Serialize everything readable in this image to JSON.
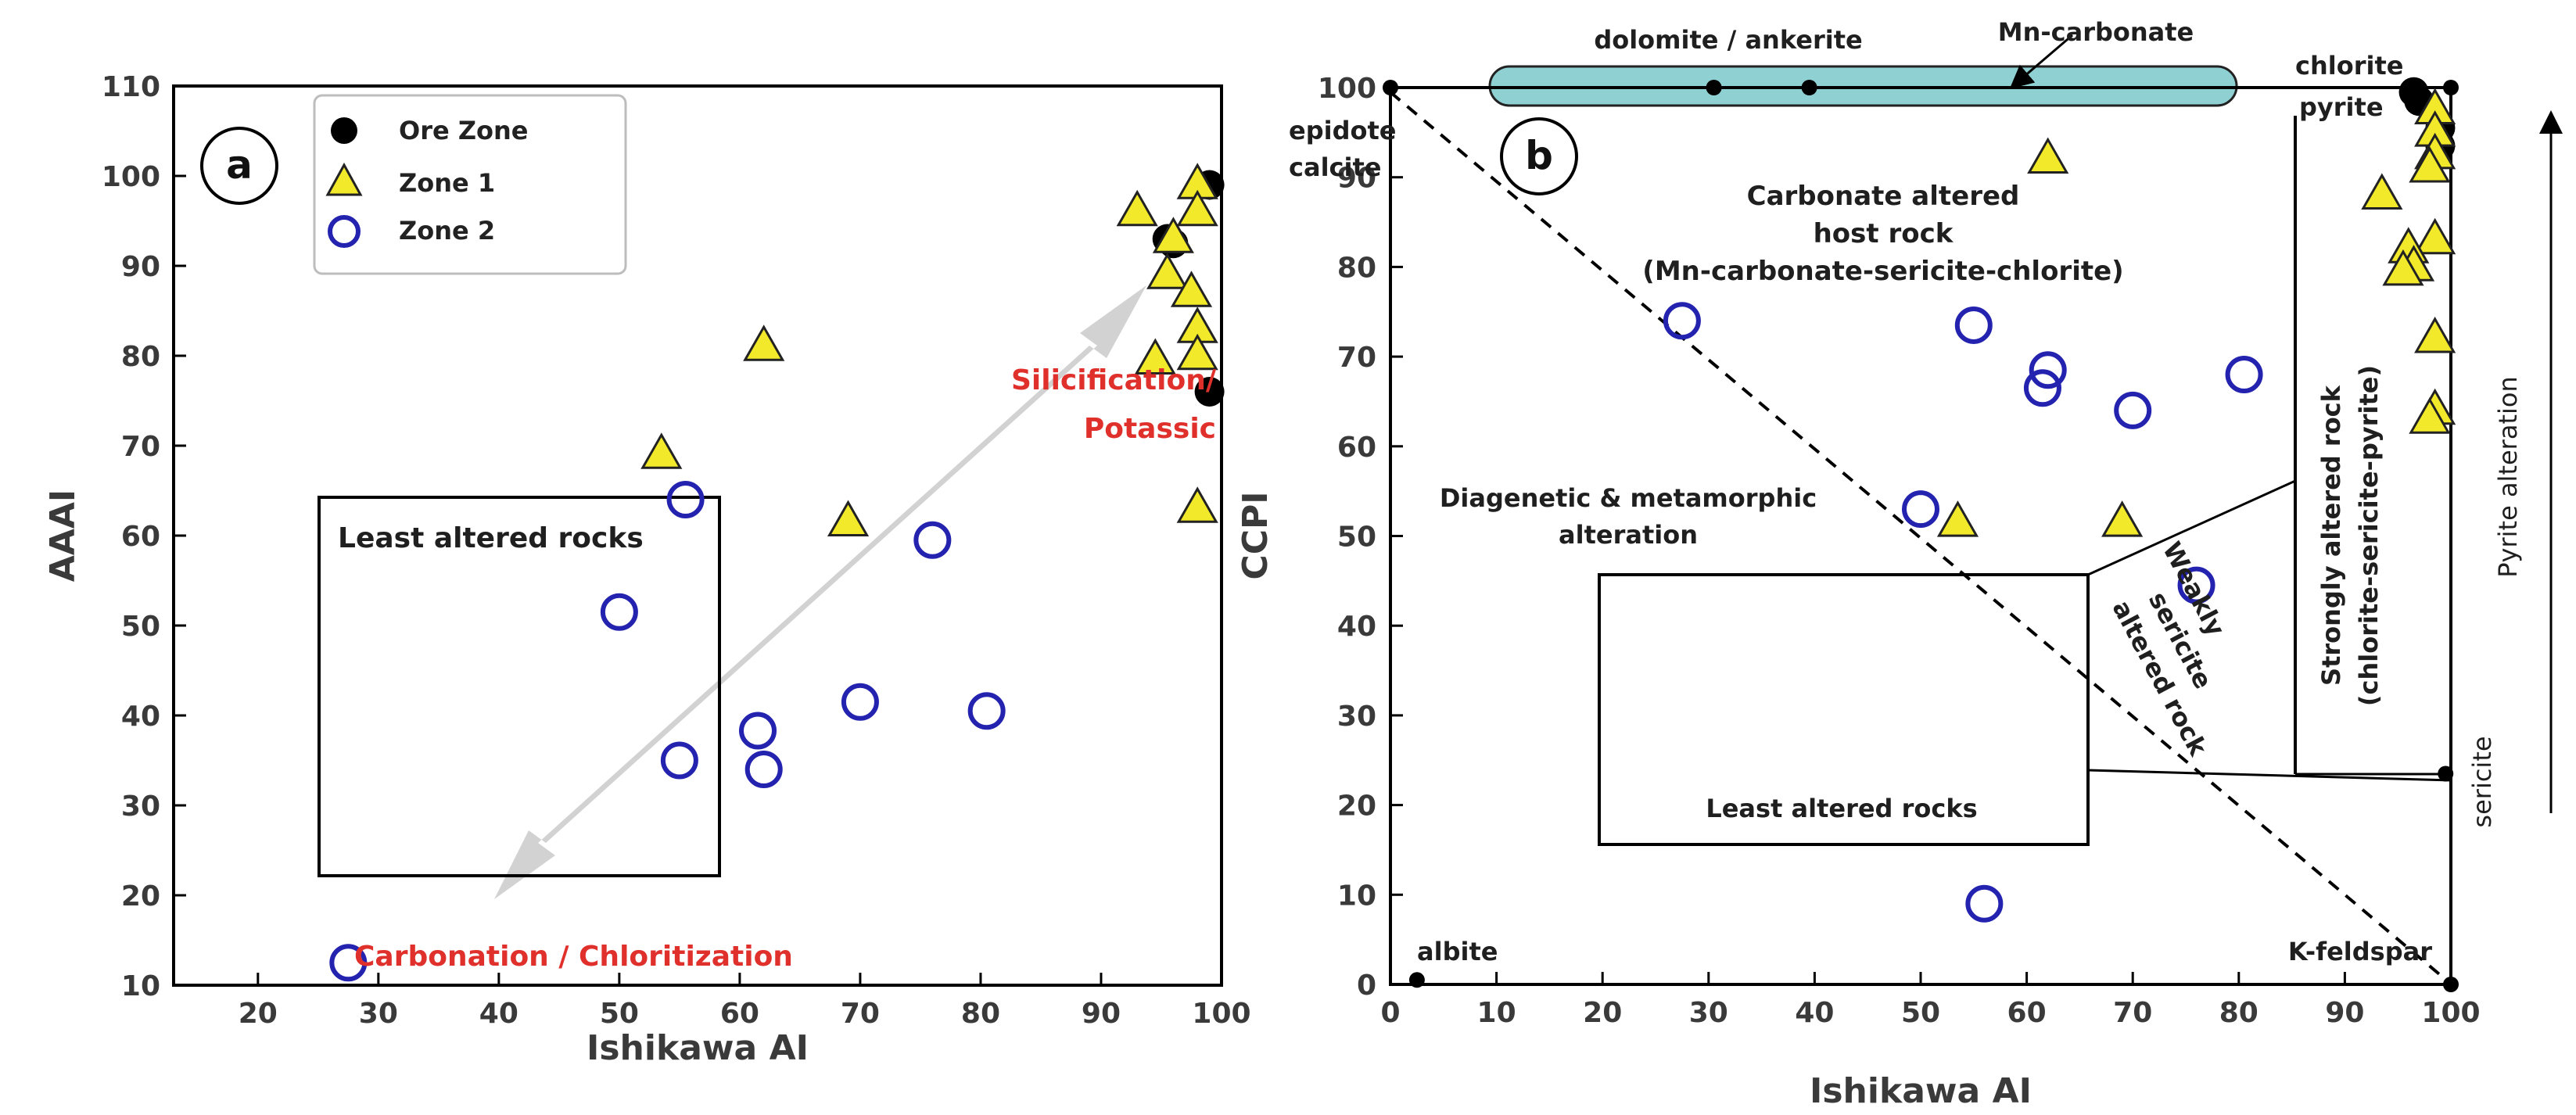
{
  "chart_data": [
    {
      "type": "scatter",
      "panel_label": "a",
      "xlabel": "Ishikawa AI",
      "ylabel": "AAAI",
      "xlim": [
        13,
        100
      ],
      "ylim": [
        10,
        110
      ],
      "xticks": [
        20,
        30,
        40,
        50,
        60,
        70,
        80,
        90,
        100
      ],
      "yticks": [
        10,
        20,
        30,
        40,
        50,
        60,
        70,
        80,
        90,
        100,
        110
      ],
      "legend": {
        "placement": "top-left",
        "entries": [
          "Ore Zone",
          "Zone 1",
          "Zone 2"
        ]
      },
      "series": [
        {
          "name": "Ore Zone",
          "marker": "filled-circle",
          "color": "#000000",
          "points": [
            [
              95.5,
              93
            ],
            [
              96,
              92.5
            ],
            [
              99,
              99
            ],
            [
              99,
              76
            ]
          ]
        },
        {
          "name": "Zone 1",
          "marker": "triangle",
          "color": "#f2e92b",
          "points": [
            [
              93,
              96
            ],
            [
              96,
              93
            ],
            [
              95.5,
              89
            ],
            [
              94.5,
              79.5
            ],
            [
              62,
              81
            ],
            [
              53.5,
              69
            ],
            [
              69,
              61.5
            ],
            [
              98,
              99
            ],
            [
              98,
              96
            ],
            [
              97.5,
              87
            ],
            [
              98,
              83
            ],
            [
              98,
              80
            ],
            [
              98,
              63
            ]
          ]
        },
        {
          "name": "Zone 2",
          "marker": "open-circle",
          "color": "#2323b0",
          "points": [
            [
              55.5,
              64
            ],
            [
              50,
              51.5
            ],
            [
              76,
              59.5
            ],
            [
              55,
              35
            ],
            [
              61.5,
              38.3
            ],
            [
              62,
              34
            ],
            [
              70,
              41.5
            ],
            [
              80.5,
              40.5
            ],
            [
              27.5,
              12.5
            ]
          ]
        }
      ],
      "annotations": {
        "box_label": "Least altered rocks",
        "arrow_top_label_1": "Silicification/",
        "arrow_top_label_2": "Potassic",
        "arrow_bottom_label": "Carbonation / Chloritization"
      }
    },
    {
      "type": "scatter",
      "panel_label": "b",
      "xlabel": "Ishikawa AI",
      "ylabel": "CCPI",
      "xlim": [
        0,
        100
      ],
      "ylim": [
        0,
        100
      ],
      "xticks": [
        0,
        10,
        20,
        30,
        40,
        50,
        60,
        70,
        80,
        90,
        100
      ],
      "yticks": [
        0,
        10,
        20,
        30,
        40,
        50,
        60,
        70,
        80,
        90,
        100
      ],
      "right_axis_label": "Pyrite alteration",
      "series": [
        {
          "name": "Ore Zone",
          "marker": "filled-circle",
          "color": "#000000",
          "points": [
            [
              96.5,
              99.5
            ],
            [
              97,
              98.5
            ],
            [
              99,
              95.5
            ],
            [
              99,
              93.5
            ]
          ]
        },
        {
          "name": "Zone 1",
          "marker": "triangle",
          "color": "#f2e92b",
          "points": [
            [
              62,
              92
            ],
            [
              98.5,
              97.5
            ],
            [
              98.5,
              95
            ],
            [
              98.5,
              92.5
            ],
            [
              98,
              91
            ],
            [
              93.5,
              88
            ],
            [
              98.5,
              83
            ],
            [
              96,
              82
            ],
            [
              96.5,
              80
            ],
            [
              95.5,
              79.5
            ],
            [
              98.5,
              72
            ],
            [
              98.5,
              64
            ],
            [
              98,
              63
            ],
            [
              53.5,
              51.5
            ],
            [
              69,
              51.5
            ]
          ]
        },
        {
          "name": "Zone 2",
          "marker": "open-circle",
          "color": "#2323b0",
          "points": [
            [
              27.5,
              74
            ],
            [
              55,
              73.5
            ],
            [
              62,
              68.5
            ],
            [
              61.5,
              66.5
            ],
            [
              70,
              64
            ],
            [
              80.5,
              68
            ],
            [
              50,
              53
            ],
            [
              76,
              44.5
            ],
            [
              56,
              9
            ]
          ]
        }
      ],
      "vertex_points": [
        [
          0,
          100
        ],
        [
          30.5,
          100
        ],
        [
          39.5,
          100
        ],
        [
          100,
          100
        ],
        [
          2.5,
          0.5
        ],
        [
          100,
          0
        ],
        [
          99.5,
          23.5
        ]
      ],
      "annotations": {
        "top_bar_label": "dolomite / ankerite",
        "mn_label": "Mn-carbonate",
        "chlorite": "chlorite",
        "pyrite": "pyrite",
        "epidote": "epidote",
        "calcite": "calcite",
        "carb_1": "Carbonate altered",
        "carb_2": "host rock",
        "carb_3": "(Mn-carbonate-sericite-chlorite)",
        "diag_1": "Diagenetic & metamorphic",
        "diag_2": "alteration",
        "least": "Least altered rocks",
        "weak_1": "Weakly",
        "weak_2": "sericite",
        "weak_3": "altered rock",
        "strong_1": "Strongly altered rock",
        "strong_2": "(chlorite-sericite-pyrite)",
        "sericite": "sericite",
        "albite": "albite",
        "kfeldspar": "K-feldspar"
      }
    }
  ]
}
